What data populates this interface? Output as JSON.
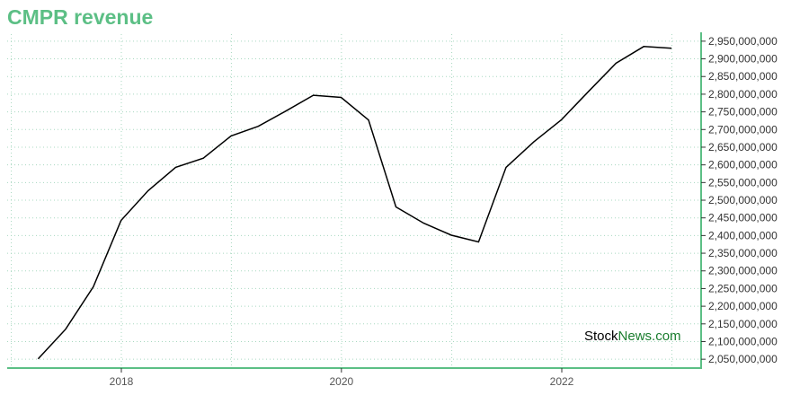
{
  "title": "CMPR revenue",
  "watermark": {
    "part1": "Stock",
    "part2": "News",
    "part3": ".com",
    "color_dark": "#000000",
    "color_green": "#1a7d2e"
  },
  "colors": {
    "title": "#5cbf85",
    "axis": "#5cbf85",
    "grid": "#a8d8c0",
    "line": "#000000"
  },
  "chart_data": {
    "type": "line",
    "title": "CMPR revenue",
    "xlabel": "",
    "ylabel": "",
    "grid": true,
    "y_axis_side": "right",
    "ylim": [
      2025000000,
      2970000000
    ],
    "x_ticks": [
      "2018",
      "2020",
      "2022"
    ],
    "y_ticks": [
      "2,050,000,000",
      "2,100,000,000",
      "2,150,000,000",
      "2,200,000,000",
      "2,250,000,000",
      "2,300,000,000",
      "2,350,000,000",
      "2,400,000,000",
      "2,450,000,000",
      "2,500,000,000",
      "2,550,000,000",
      "2,600,000,000",
      "2,650,000,000",
      "2,700,000,000",
      "2,750,000,000",
      "2,800,000,000",
      "2,850,000,000",
      "2,900,000,000",
      "2,950,000,000"
    ],
    "series": [
      {
        "x": [
          "2017-03-31",
          "2017-06-30",
          "2017-09-30",
          "2017-12-31",
          "2018-03-31",
          "2018-06-30",
          "2018-09-30",
          "2018-12-31",
          "2019-03-31",
          "2019-06-30",
          "2019-09-30",
          "2019-12-31",
          "2020-03-31",
          "2020-06-30",
          "2020-09-30",
          "2020-12-31",
          "2021-03-31",
          "2021-06-30",
          "2021-09-30",
          "2021-12-31",
          "2022-03-31",
          "2022-06-30",
          "2022-09-30",
          "2022-12-31"
        ],
        "values": [
          2051000000,
          2135000000,
          2255000000,
          2443000000,
          2527000000,
          2593000000,
          2619000000,
          2682000000,
          2709000000,
          2752000000,
          2797000000,
          2791000000,
          2727000000,
          2481000000,
          2435000000,
          2401000000,
          2382000000,
          2593000000,
          2665000000,
          2728000000,
          2808000000,
          2888000000,
          2935000000,
          2930000000
        ]
      }
    ]
  }
}
